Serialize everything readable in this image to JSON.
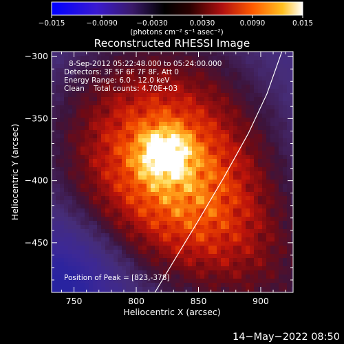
{
  "colorbar": {
    "ticks": [
      "−0.015",
      "−0.0090",
      "−0.0030",
      "0.0030",
      "0.0090",
      "0.015"
    ],
    "unit": "(photons cm⁻² s⁻¹ asec⁻²)",
    "range": [
      -0.015,
      0.015
    ],
    "colors": [
      "#0000ff",
      "#2a1a8a",
      "#000000",
      "#7a1010",
      "#e02000",
      "#ff9a00",
      "#ffffff"
    ]
  },
  "title": "Reconstructed RHESSI Image",
  "info": {
    "time_range": "8-Sep-2012 05:22:48.000 to 05:24:00.000",
    "detectors": "Detectors: 3F 5F 6F 7F 8F, Att 0",
    "energy": "Energy Range: 6.0 - 12.0 keV",
    "clean": "Clean    Total counts: 4.70E+03",
    "peak": "Position of Peak = [823,-378]"
  },
  "chart_data": {
    "type": "heatmap",
    "title": "Reconstructed RHESSI Image",
    "xlabel": "Heliocentric X (arcsec)",
    "ylabel": "Heliocentric Y (arcsec)",
    "xlim": [
      732,
      926
    ],
    "ylim": [
      -490,
      -296
    ],
    "xticks": [
      750,
      800,
      850,
      900
    ],
    "yticks": [
      -300,
      -350,
      -400,
      -450
    ],
    "xtick_labels": [
      "750",
      "800",
      "850",
      "900"
    ],
    "ytick_labels": [
      "−300",
      "−350",
      "−400",
      "−450"
    ],
    "peak": [
      823,
      -378
    ],
    "limb_curve": [
      [
        917,
        -296
      ],
      [
        905,
        -330
      ],
      [
        890,
        -362
      ],
      [
        870,
        -398
      ],
      [
        850,
        -432
      ],
      [
        830,
        -465
      ],
      [
        815,
        -490
      ]
    ]
  },
  "footer": {
    "date": "14−May−2022 08:50"
  }
}
